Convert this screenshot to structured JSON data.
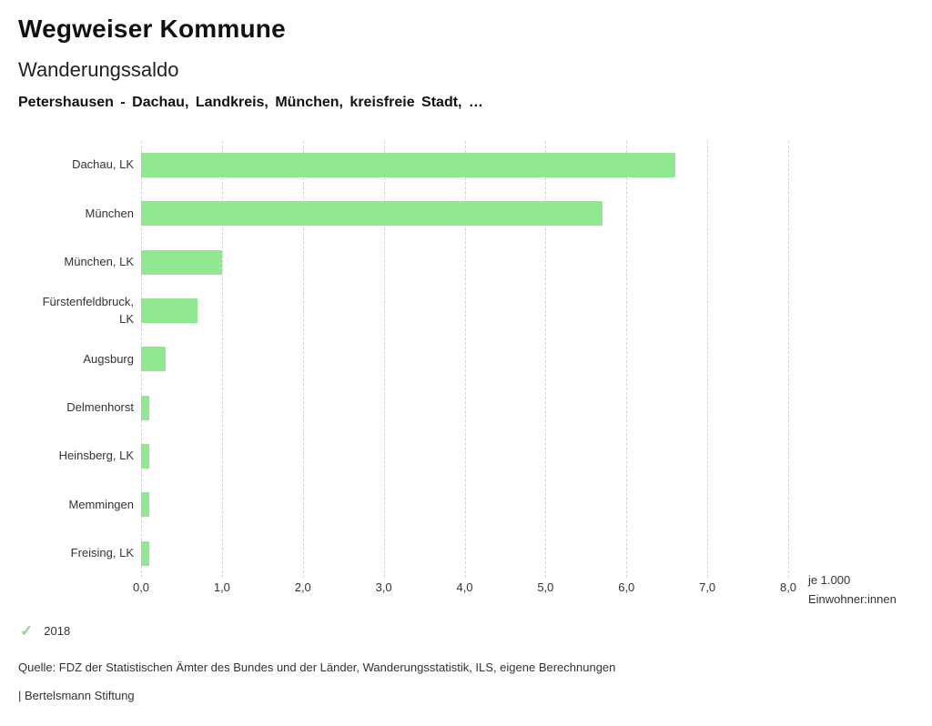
{
  "header": {
    "title": "Wegweiser Kommune",
    "subtitle": "Wanderungssaldo",
    "context": "Petershausen - Dachau, Landkreis, München, kreisfreie Stadt, …"
  },
  "chart_data": {
    "type": "bar",
    "orientation": "horizontal",
    "title": "Wanderungssaldo",
    "categories": [
      "Dachau, LK",
      "München",
      "München, LK",
      "Fürstenfeldbruck, LK",
      "Augsburg",
      "Delmenhorst",
      "Heinsberg, LK",
      "Memmingen",
      "Freising, LK"
    ],
    "series": [
      {
        "name": "2018",
        "values": [
          6.6,
          5.7,
          1.0,
          0.7,
          0.3,
          0.1,
          0.1,
          0.1,
          0.1
        ]
      }
    ],
    "xlim": [
      0,
      8
    ],
    "x_tick_values": [
      0,
      1,
      2,
      3,
      4,
      5,
      6,
      7,
      8
    ],
    "x_tick_labels": [
      "0,0",
      "1,0",
      "2,0",
      "3,0",
      "4,0",
      "5,0",
      "6,0",
      "7,0",
      "8,0"
    ],
    "xlabel": "je 1.000 Einwohner:innen",
    "ylabel": "",
    "grid": "vertical-dashed",
    "legend_position": "bottom-left",
    "bar_color": "#90e890"
  },
  "axis_unit": {
    "line1": "je 1.000",
    "line2": "Einwohner:innen"
  },
  "legend": {
    "check_icon": "✓",
    "check_color": "#8fd98f",
    "year_label": "2018"
  },
  "footer": {
    "source": "Quelle: FDZ der Statistischen Ämter des Bundes und der Länder, Wanderungsstatistik, ILS, eigene Berechnungen",
    "branding": "| Bertelsmann Stiftung"
  }
}
